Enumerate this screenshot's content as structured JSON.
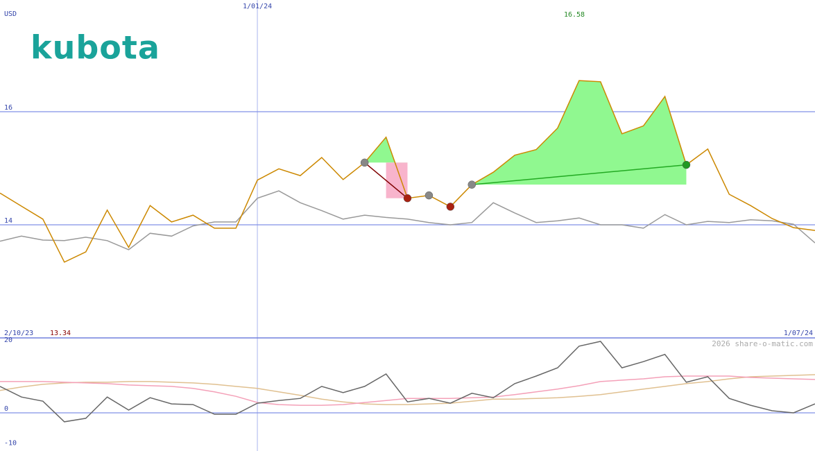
{
  "chart_data": [
    {
      "type": "line",
      "logo": "kubota",
      "ylabel": "USD",
      "categories": [
        "2/10/23",
        null,
        null,
        null,
        null,
        null,
        null,
        null,
        null,
        null,
        null,
        null,
        "1/01/24",
        null,
        null,
        null,
        null,
        null,
        null,
        null,
        null,
        null,
        null,
        null,
        null,
        null,
        null,
        null,
        null,
        null,
        null,
        null,
        null,
        null,
        null,
        null,
        null,
        null,
        "1/07/24"
      ],
      "series": [
        {
          "color": "#999999",
          "values": [
            13.71,
            13.8,
            13.73,
            13.72,
            13.78,
            13.72,
            13.56,
            13.85,
            13.8,
            13.98,
            14.05,
            14.05,
            14.47,
            14.6,
            14.39,
            14.25,
            14.1,
            14.17,
            14.13,
            14.1,
            14.04,
            14.0,
            14.04,
            14.39,
            14.21,
            14.04,
            14.07,
            14.12,
            14.0,
            14.0,
            13.94,
            14.18,
            14.0,
            14.06,
            14.04,
            14.09,
            14.07,
            14.01,
            13.68
          ]
        },
        {
          "color": "#cc8800",
          "values": [
            14.56,
            14.33,
            14.1,
            13.34,
            13.52,
            14.26,
            13.6,
            14.34,
            14.05,
            14.17,
            13.94,
            13.94,
            14.79,
            14.99,
            14.87,
            15.19,
            14.8,
            15.1,
            15.55,
            14.47,
            14.52,
            14.32,
            14.71,
            14.93,
            15.23,
            15.33,
            15.71,
            16.55,
            16.53,
            15.61,
            15.75,
            16.27,
            15.06,
            15.34,
            14.54,
            14.34,
            14.11,
            13.95,
            13.9
          ]
        }
      ],
      "signals": [
        {
          "index": 17,
          "color": "#888888"
        },
        {
          "index": 19,
          "color": "#aa2211"
        },
        {
          "index": 20,
          "color": "#888888"
        },
        {
          "index": 21,
          "color": "#aa2211"
        },
        {
          "index": 22,
          "color": "#888888"
        },
        {
          "index": 32,
          "color": "#229922"
        }
      ],
      "trades": [
        {
          "from": 17,
          "to": 19,
          "color": "#800000"
        },
        {
          "from": 22,
          "to": 32,
          "color": "#22aa22"
        }
      ],
      "annotations": [
        {
          "text": "16.58",
          "color": "#228822"
        },
        {
          "text": "13.34",
          "color": "#880000"
        }
      ],
      "ylim": [
        12,
        17.975
      ],
      "yticks": [
        14,
        16
      ],
      "grid": true
    },
    {
      "type": "line",
      "source": "2026 share-o-matic.com",
      "series": [
        {
          "color": "#e0c090",
          "values": [
            6.5,
            7.5,
            8.3,
            8.7,
            8.9,
            8.9,
            9.1,
            9.1,
            8.9,
            8.7,
            8.3,
            7.7,
            7.1,
            6.1,
            5.1,
            4.0,
            3.2,
            2.6,
            2.4,
            2.4,
            2.6,
            2.8,
            3.4,
            4.0,
            4.0,
            4.2,
            4.4,
            4.8,
            5.3,
            6.1,
            6.9,
            7.7,
            8.5,
            9.1,
            9.9,
            10.5,
            10.7,
            10.9,
            11.1
          ]
        },
        {
          "color": "#f4a0b8",
          "values": [
            9.1,
            9.1,
            9.1,
            8.9,
            8.7,
            8.5,
            8.1,
            7.9,
            7.7,
            7.1,
            6.1,
            4.8,
            3.0,
            2.4,
            2.2,
            2.2,
            2.4,
            3.0,
            3.6,
            4.2,
            4.2,
            4.2,
            4.4,
            4.6,
            5.3,
            6.1,
            6.9,
            7.9,
            9.1,
            9.5,
            9.9,
            10.5,
            10.7,
            10.7,
            10.7,
            10.3,
            10.1,
            9.9,
            9.7
          ]
        },
        {
          "color": "#666666",
          "values": [
            7.7,
            4.6,
            3.4,
            -2.6,
            -1.6,
            4.6,
            0.8,
            4.4,
            2.6,
            2.4,
            -0.4,
            -0.4,
            2.8,
            3.6,
            4.2,
            7.7,
            5.9,
            7.7,
            11.3,
            3.2,
            4.2,
            2.8,
            5.7,
            4.4,
            8.5,
            10.7,
            13.1,
            19.4,
            20.8,
            13.1,
            14.9,
            17.0,
            8.9,
            10.5,
            4.2,
            2.2,
            0.6,
            0.0,
            2.6
          ]
        }
      ],
      "ylim": [
        -11.1,
        21.8
      ],
      "yticks": [
        -10,
        0,
        20
      ],
      "grid": false
    }
  ]
}
